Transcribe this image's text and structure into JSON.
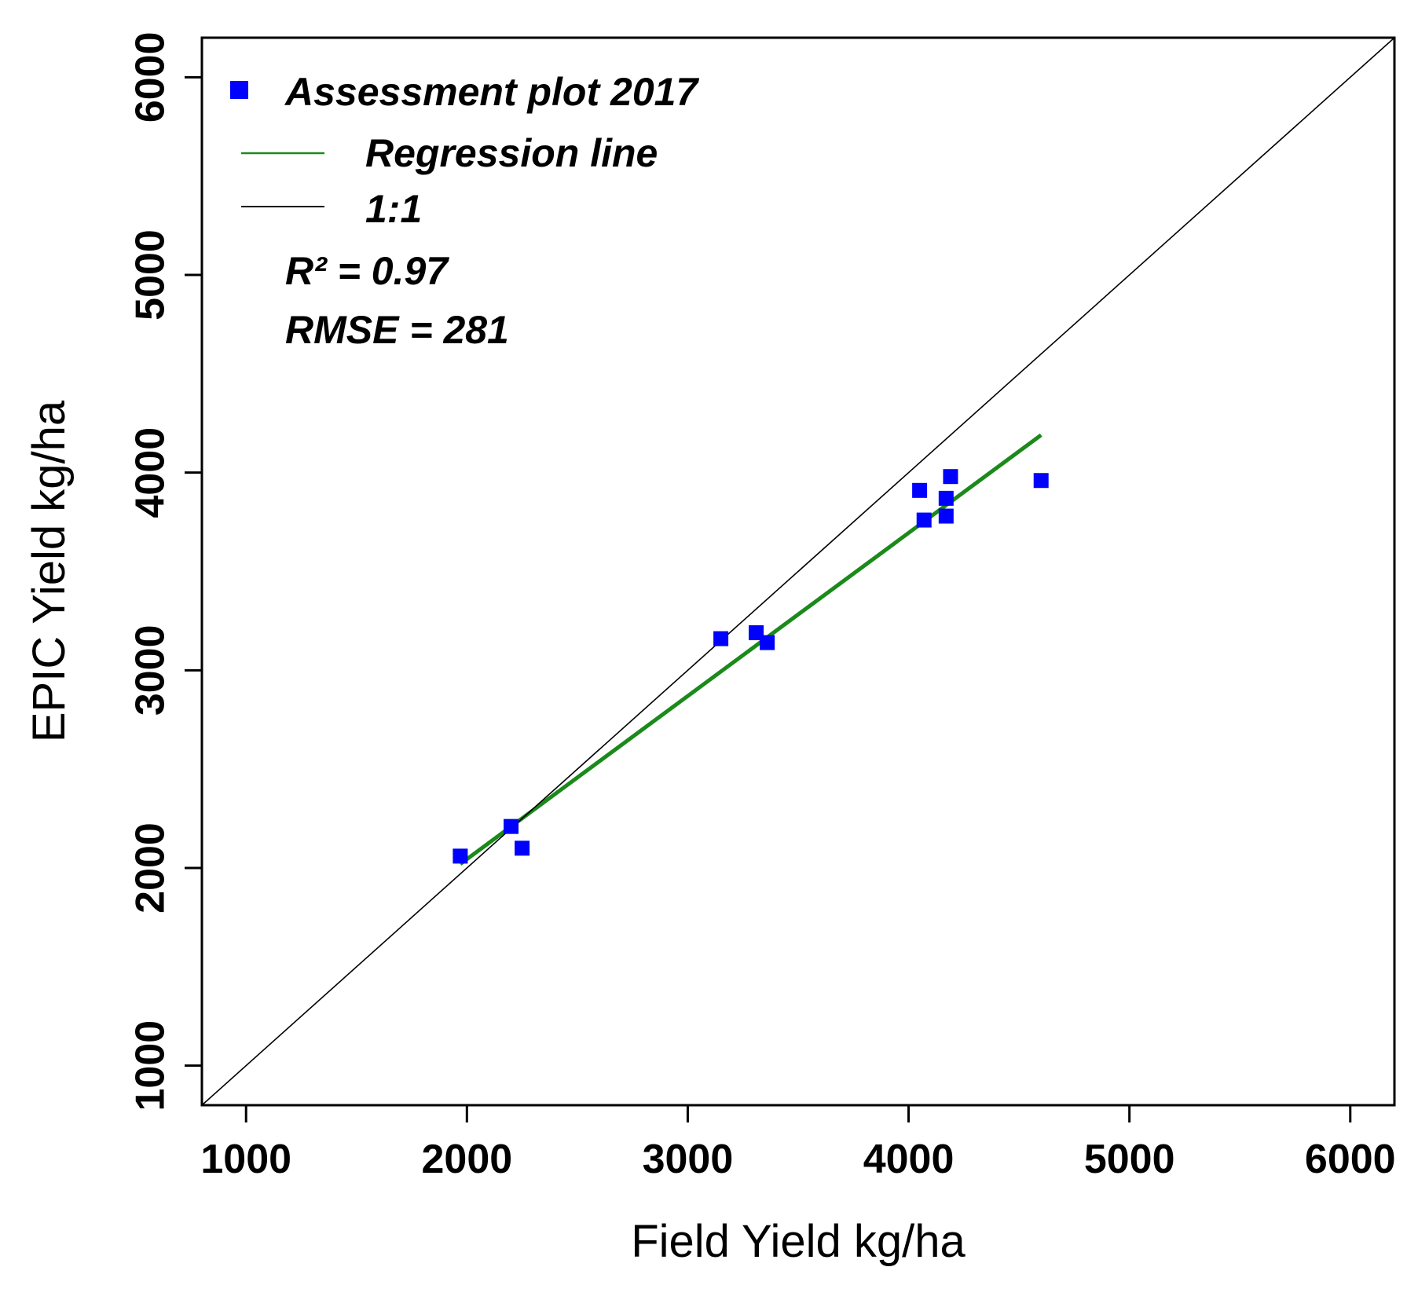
{
  "chart_data": {
    "type": "scatter",
    "xlabel": "Field Yield kg/ha",
    "ylabel": "EPIC Yield kg/ha",
    "xlim": [
      800,
      6200
    ],
    "ylim": [
      800,
      6200
    ],
    "xticks": [
      1000,
      2000,
      3000,
      4000,
      5000,
      6000
    ],
    "yticks": [
      1000,
      2000,
      3000,
      4000,
      5000,
      6000
    ],
    "grid": false,
    "legend_position": "top-left",
    "series": [
      {
        "name": "Assessment plot 2017",
        "kind": "points",
        "color": "#0000ff",
        "marker": "square",
        "points": [
          {
            "x": 1970,
            "y": 2060
          },
          {
            "x": 2200,
            "y": 2210
          },
          {
            "x": 2250,
            "y": 2100
          },
          {
            "x": 3150,
            "y": 3160
          },
          {
            "x": 3310,
            "y": 3190
          },
          {
            "x": 3360,
            "y": 3140
          },
          {
            "x": 4050,
            "y": 3910
          },
          {
            "x": 4070,
            "y": 3760
          },
          {
            "x": 4170,
            "y": 3870
          },
          {
            "x": 4170,
            "y": 3780
          },
          {
            "x": 4190,
            "y": 3980
          },
          {
            "x": 4600,
            "y": 3960
          }
        ]
      },
      {
        "name": "Regression line",
        "kind": "line",
        "color": "#1a8a1a",
        "x": [
          1970,
          4600
        ],
        "y": [
          2020,
          4190
        ]
      },
      {
        "name": "1:1",
        "kind": "line",
        "color": "#000000",
        "x": [
          800,
          6200
        ],
        "y": [
          800,
          6200
        ]
      }
    ],
    "annotations": [
      "R² = 0.97",
      "RMSE = 281"
    ]
  }
}
